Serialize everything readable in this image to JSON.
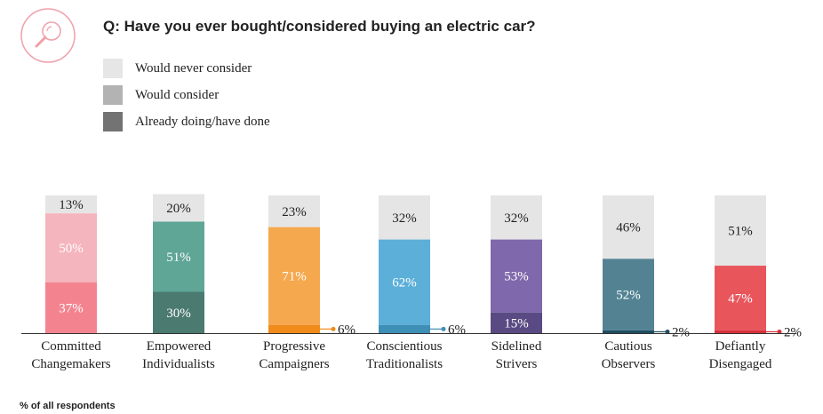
{
  "title": "Q: Have you ever bought/considered buying an electric car?",
  "footnote": "% of all respondents",
  "logo_icon": "magnifier-icon",
  "legend": [
    {
      "label": "Would never consider",
      "color": "#e6e6e6"
    },
    {
      "label": "Would consider",
      "color": "#b3b3b3"
    },
    {
      "label": "Already doing/have done",
      "color": "#737373"
    }
  ],
  "chart_data": {
    "type": "bar",
    "stacked": true,
    "categories": [
      [
        "Committed",
        "Changemakers"
      ],
      [
        "Empowered",
        "Individualists"
      ],
      [
        "Progressive",
        "Campaigners"
      ],
      [
        "Conscientious",
        "Traditionalists"
      ],
      [
        "Sidelined",
        "Strivers"
      ],
      [
        "Cautious",
        "Observers"
      ],
      [
        "Defiantly",
        "Disengaged"
      ]
    ],
    "series": [
      {
        "name": "Already doing/have done",
        "values": [
          37,
          30,
          6,
          6,
          15,
          2,
          2
        ]
      },
      {
        "name": "Would consider",
        "values": [
          50,
          51,
          71,
          62,
          53,
          52,
          47
        ]
      },
      {
        "name": "Would never consider",
        "values": [
          13,
          20,
          23,
          32,
          32,
          46,
          51
        ]
      }
    ],
    "colors": {
      "never": [
        "#e5e5e5",
        "#e5e5e5",
        "#e5e5e5",
        "#e5e5e5",
        "#e5e5e5",
        "#e5e5e5",
        "#e5e5e5"
      ],
      "consider": [
        "#f5b5be",
        "#5fa697",
        "#f5a84e",
        "#5bafd9",
        "#7f68ab",
        "#538393",
        "#e8565c"
      ],
      "done": [
        "#f3848f",
        "#4a7a70",
        "#ef8a1b",
        "#3e8fb6",
        "#5a4a83",
        "#1f4d5f",
        "#d9303a"
      ]
    },
    "labels": [
      [
        "37%",
        "50%",
        "13%"
      ],
      [
        "30%",
        "51%",
        "20%"
      ],
      [
        "6%",
        "71%",
        "23%"
      ],
      [
        "6%",
        "62%",
        "32%"
      ],
      [
        "15%",
        "53%",
        "32%"
      ],
      [
        "2%",
        "52%",
        "46%"
      ],
      [
        "2%",
        "47%",
        "51%"
      ]
    ],
    "ylim": [
      0,
      100
    ]
  }
}
